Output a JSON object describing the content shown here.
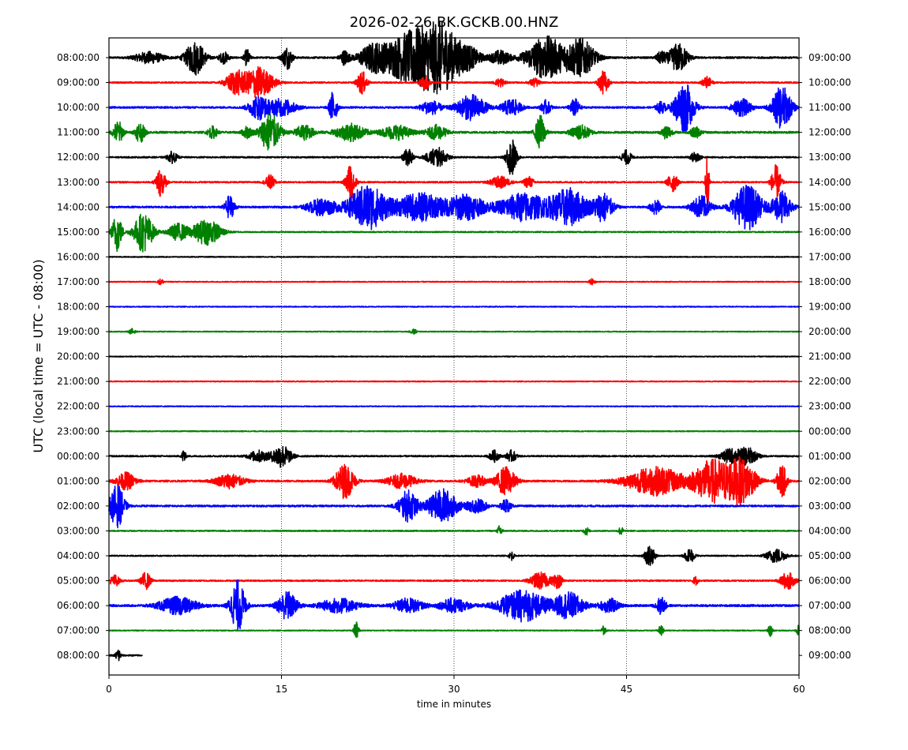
{
  "chart_data": {
    "type": "line",
    "title": "2026-02-26 BK.GCKB.00.HNZ",
    "xlabel": "time in minutes",
    "ylabel": "UTC (local time = UTC - 08:00)",
    "xlim": [
      0,
      60
    ],
    "x_ticks": [
      0,
      15,
      30,
      45,
      60
    ],
    "x_tick_labels": [
      "0",
      "15",
      "30",
      "45",
      "60"
    ],
    "grid": "vertical dotted lines at 15, 30, 45",
    "legend": "none",
    "colors": [
      "#000000",
      "#ff0000",
      "#0000ff",
      "#008000"
    ],
    "left_labels": [
      "08:00:00",
      "09:00:00",
      "10:00:00",
      "11:00:00",
      "12:00:00",
      "13:00:00",
      "14:00:00",
      "15:00:00",
      "16:00:00",
      "17:00:00",
      "18:00:00",
      "19:00:00",
      "20:00:00",
      "21:00:00",
      "22:00:00",
      "23:00:00",
      "00:00:00",
      "01:00:00",
      "02:00:00",
      "03:00:00",
      "04:00:00",
      "05:00:00",
      "06:00:00",
      "07:00:00",
      "08:00:00"
    ],
    "right_labels": [
      "09:00:00",
      "10:00:00",
      "11:00:00",
      "12:00:00",
      "13:00:00",
      "14:00:00",
      "15:00:00",
      "16:00:00",
      "17:00:00",
      "18:00:00",
      "19:00:00",
      "20:00:00",
      "21:00:00",
      "22:00:00",
      "23:00:00",
      "00:00:00",
      "01:00:00",
      "02:00:00",
      "03:00:00",
      "04:00:00",
      "05:00:00",
      "06:00:00",
      "07:00:00",
      "08:00:00",
      "09:00:00"
    ],
    "traces": [
      {
        "end_minute": 60,
        "noise": 0.06,
        "bursts": [
          [
            3.5,
            3,
            0.4
          ],
          [
            7.5,
            2,
            1.2
          ],
          [
            10,
            1,
            0.4
          ],
          [
            12,
            0.6,
            0.6
          ],
          [
            15.5,
            1,
            0.8
          ],
          [
            20.5,
            1,
            0.5
          ],
          [
            23,
            3,
            1
          ],
          [
            25,
            3,
            0.9
          ],
          [
            27,
            4,
            2
          ],
          [
            29,
            3,
            2
          ],
          [
            31,
            3,
            0.9
          ],
          [
            34,
            2,
            0.5
          ],
          [
            38,
            4,
            1.5
          ],
          [
            41,
            3,
            1.3
          ],
          [
            48,
            1,
            0.4
          ],
          [
            49.5,
            2,
            1
          ]
        ]
      },
      {
        "end_minute": 60,
        "noise": 0.05,
        "bursts": [
          [
            11,
            2,
            0.8
          ],
          [
            13,
            3,
            1.1
          ],
          [
            22,
            1,
            0.8
          ],
          [
            27.5,
            1,
            0.5
          ],
          [
            34,
            1,
            0.3
          ],
          [
            37,
            1,
            0.3
          ],
          [
            43,
            1,
            0.8
          ],
          [
            52,
            1,
            0.4
          ]
        ]
      },
      {
        "end_minute": 60,
        "noise": 0.06,
        "bursts": [
          [
            13,
            2,
            0.8
          ],
          [
            15,
            3,
            0.6
          ],
          [
            19.5,
            0.8,
            1.2
          ],
          [
            28,
            2,
            0.5
          ],
          [
            31.5,
            3,
            0.9
          ],
          [
            35,
            2,
            0.6
          ],
          [
            38,
            1,
            0.5
          ],
          [
            40.5,
            1,
            0.6
          ],
          [
            48,
            1,
            0.4
          ],
          [
            50,
            2,
            1.8
          ],
          [
            55,
            2,
            0.6
          ],
          [
            58.5,
            2,
            1.5
          ]
        ]
      },
      {
        "end_minute": 60,
        "noise": 0.07,
        "bursts": [
          [
            0.8,
            1,
            0.8
          ],
          [
            2.7,
            1,
            0.7
          ],
          [
            9,
            1,
            0.4
          ],
          [
            12,
            1,
            0.4
          ],
          [
            14,
            2,
            1.4
          ],
          [
            17,
            2,
            0.5
          ],
          [
            21,
            3,
            0.6
          ],
          [
            25,
            3,
            0.5
          ],
          [
            28.5,
            2,
            0.5
          ],
          [
            37.5,
            1,
            1.2
          ],
          [
            41,
            2,
            0.5
          ],
          [
            48.5,
            1,
            0.5
          ],
          [
            51,
            1,
            0.4
          ]
        ]
      },
      {
        "end_minute": 60,
        "noise": 0.05,
        "bursts": [
          [
            5.5,
            1,
            0.4
          ],
          [
            26,
            1,
            0.6
          ],
          [
            28.5,
            2,
            0.7
          ],
          [
            35,
            1,
            1.4
          ],
          [
            45,
            1,
            0.5
          ],
          [
            51,
            1,
            0.4
          ]
        ]
      },
      {
        "end_minute": 60,
        "noise": 0.05,
        "bursts": [
          [
            4.5,
            1,
            1
          ],
          [
            14,
            1,
            0.5
          ],
          [
            21,
            1,
            1.2
          ],
          [
            34,
            2,
            0.4
          ],
          [
            36.5,
            1,
            0.4
          ],
          [
            49,
            1,
            0.7
          ],
          [
            52,
            0.4,
            2
          ],
          [
            58,
            1,
            1.2
          ]
        ]
      },
      {
        "end_minute": 60,
        "noise": 0.06,
        "bursts": [
          [
            10.5,
            1,
            0.8
          ],
          [
            18.5,
            3,
            0.6
          ],
          [
            22.5,
            4,
            1.6
          ],
          [
            27,
            5,
            1
          ],
          [
            31,
            4,
            0.9
          ],
          [
            36,
            5,
            1
          ],
          [
            40,
            4,
            1.3
          ],
          [
            43,
            2,
            1
          ],
          [
            47.5,
            1,
            0.6
          ],
          [
            51.5,
            2,
            0.8
          ],
          [
            55.5,
            3,
            1.6
          ],
          [
            58.5,
            2,
            1.1
          ]
        ]
      },
      {
        "end_minute": 60,
        "noise": 0.04,
        "bursts": [
          [
            0.7,
            1,
            1.4
          ],
          [
            3,
            2,
            1.4
          ],
          [
            6,
            2,
            0.6
          ],
          [
            8.5,
            3,
            0.9
          ]
        ]
      },
      {
        "end_minute": 60,
        "noise": 0.03,
        "bursts": []
      },
      {
        "end_minute": 60,
        "noise": 0.03,
        "bursts": [
          [
            4.5,
            0.6,
            0.2
          ],
          [
            42,
            0.6,
            0.2
          ]
        ]
      },
      {
        "end_minute": 60,
        "noise": 0.03,
        "bursts": []
      },
      {
        "end_minute": 60,
        "noise": 0.03,
        "bursts": [
          [
            2,
            0.6,
            0.2
          ],
          [
            26.5,
            0.6,
            0.2
          ]
        ]
      },
      {
        "end_minute": 60,
        "noise": 0.03,
        "bursts": []
      },
      {
        "end_minute": 60,
        "noise": 0.03,
        "bursts": []
      },
      {
        "end_minute": 60,
        "noise": 0.03,
        "bursts": []
      },
      {
        "end_minute": 60,
        "noise": 0.03,
        "bursts": []
      },
      {
        "end_minute": 60,
        "noise": 0.05,
        "bursts": [
          [
            6.5,
            0.4,
            0.5
          ],
          [
            13,
            2,
            0.4
          ],
          [
            15,
            2,
            0.8
          ],
          [
            33.5,
            1,
            0.4
          ],
          [
            35,
            1,
            0.4
          ],
          [
            54,
            2,
            0.5
          ],
          [
            55.5,
            2,
            0.6
          ]
        ]
      },
      {
        "end_minute": 60,
        "noise": 0.06,
        "bursts": [
          [
            1.5,
            2,
            0.6
          ],
          [
            10.5,
            3,
            0.5
          ],
          [
            20.5,
            2,
            1.2
          ],
          [
            25.5,
            3,
            0.5
          ],
          [
            32,
            2,
            0.4
          ],
          [
            34.5,
            2,
            1
          ],
          [
            47.5,
            6,
            1
          ],
          [
            52.5,
            4,
            1.5
          ],
          [
            55,
            3,
            1.5
          ],
          [
            58.5,
            1,
            1.2
          ]
        ]
      },
      {
        "end_minute": 60,
        "noise": 0.06,
        "bursts": [
          [
            0.7,
            1.5,
            1.5
          ],
          [
            26,
            2,
            1.1
          ],
          [
            29,
            3,
            1.2
          ],
          [
            32,
            2,
            0.5
          ],
          [
            34.5,
            1,
            0.5
          ]
        ]
      },
      {
        "end_minute": 60,
        "noise": 0.04,
        "bursts": [
          [
            34,
            0.5,
            0.4
          ],
          [
            41.5,
            0.5,
            0.3
          ],
          [
            44.5,
            0.5,
            0.3
          ]
        ]
      },
      {
        "end_minute": 60,
        "noise": 0.04,
        "bursts": [
          [
            35,
            0.5,
            0.3
          ],
          [
            47,
            1,
            0.8
          ],
          [
            50.5,
            1,
            0.5
          ],
          [
            58,
            2,
            0.5
          ]
        ]
      },
      {
        "end_minute": 60,
        "noise": 0.05,
        "bursts": [
          [
            0.5,
            1,
            0.4
          ],
          [
            3.2,
            1,
            0.6
          ],
          [
            37.5,
            2,
            0.6
          ],
          [
            39,
            1,
            0.5
          ],
          [
            51,
            0.5,
            0.3
          ],
          [
            59,
            1.5,
            0.6
          ]
        ]
      },
      {
        "end_minute": 60,
        "noise": 0.07,
        "bursts": [
          [
            6,
            4,
            0.6
          ],
          [
            11.2,
            1.5,
            1.8
          ],
          [
            15.5,
            2,
            1
          ],
          [
            20,
            4,
            0.5
          ],
          [
            26,
            3,
            0.5
          ],
          [
            30,
            3,
            0.5
          ],
          [
            36,
            5,
            1.1
          ],
          [
            40,
            3,
            0.9
          ],
          [
            43.5,
            2,
            0.5
          ],
          [
            48,
            1,
            0.6
          ]
        ]
      },
      {
        "end_minute": 60,
        "noise": 0.03,
        "bursts": [
          [
            21.5,
            0.5,
            0.7
          ],
          [
            43,
            0.5,
            0.3
          ],
          [
            48,
            0.5,
            0.4
          ],
          [
            57.5,
            0.5,
            0.4
          ],
          [
            60,
            0.5,
            0.4
          ]
        ]
      },
      {
        "end_minute": 2.9,
        "noise": 0.05,
        "bursts": [
          [
            0.8,
            0.5,
            0.5
          ]
        ]
      }
    ]
  }
}
